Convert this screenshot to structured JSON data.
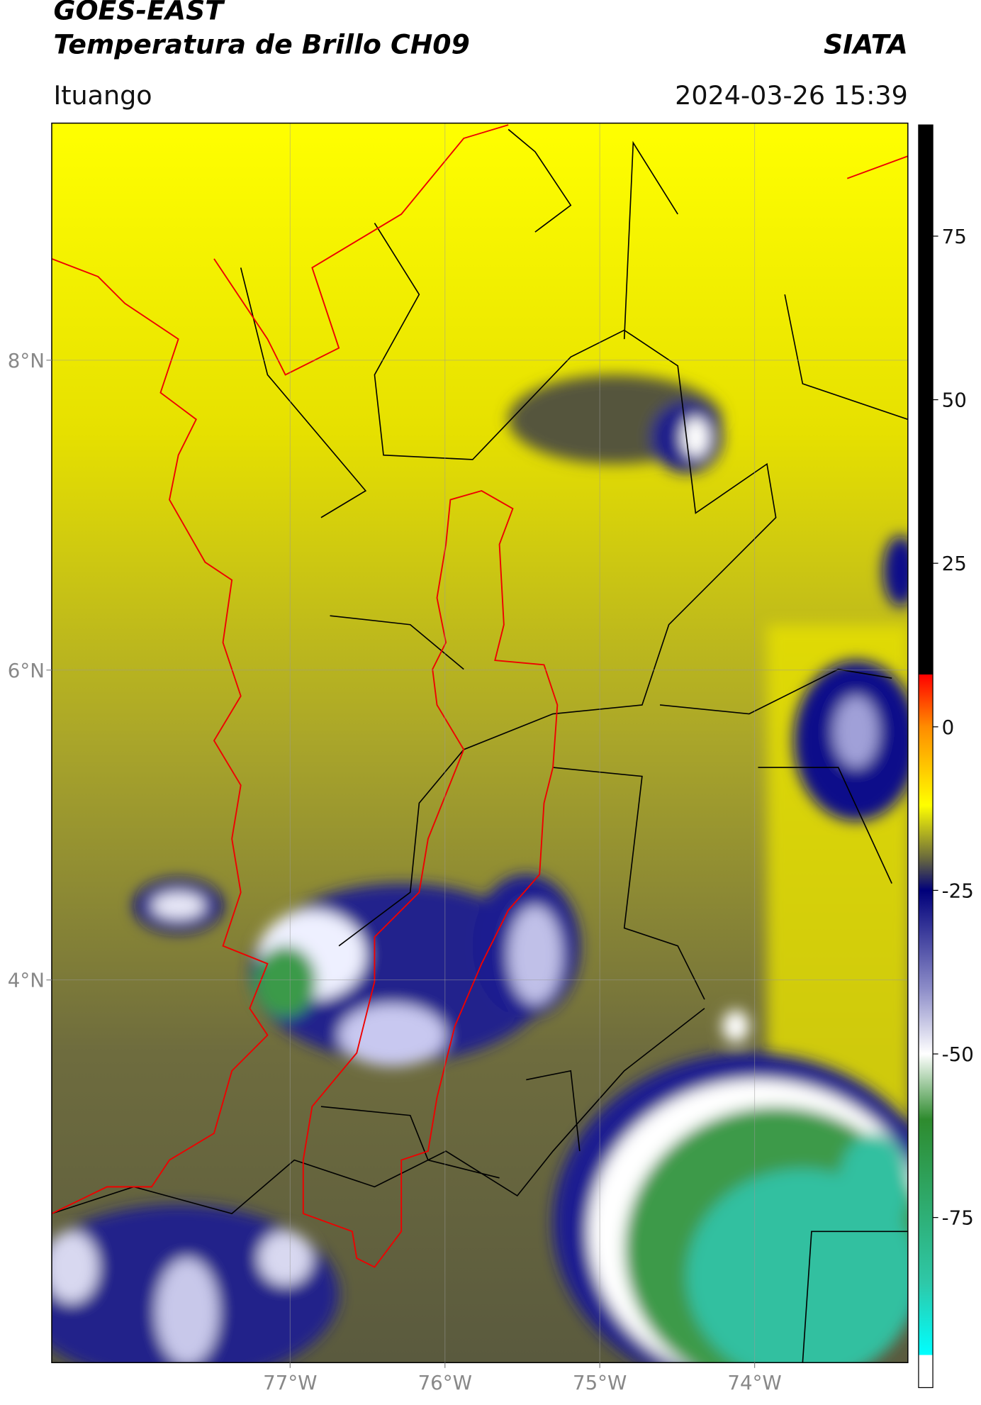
{
  "header": {
    "title_line1": "GOES-EAST",
    "title_line2": "Temperatura de Brillo CH09",
    "org": "SIATA",
    "location": "Ituango",
    "datetime": "2024-03-26 15:39"
  },
  "map": {
    "xlim": [
      -78.54,
      -73.01
    ],
    "ylim": [
      1.53,
      9.53
    ],
    "grid": true,
    "xticks": [
      {
        "value": -77,
        "label": "77°W"
      },
      {
        "value": -76,
        "label": "76°W"
      },
      {
        "value": -75,
        "label": "75°W"
      },
      {
        "value": -74,
        "label": "74°W"
      }
    ],
    "yticks": [
      {
        "value": 4,
        "label": "4°N"
      },
      {
        "value": 6,
        "label": "6°N"
      },
      {
        "value": 8,
        "label": "8°N"
      }
    ]
  },
  "colorbar": {
    "lim": [
      -101,
      92
    ],
    "ticks": [
      -75,
      -50,
      -25,
      0,
      25,
      50,
      75
    ],
    "colormap": [
      [
        92,
        "#000000"
      ],
      [
        8,
        "#000000"
      ],
      [
        8,
        "#ff0000"
      ],
      [
        0,
        "#ff8c00"
      ],
      [
        -12,
        "#ffff00"
      ],
      [
        -20,
        "#6b6b3c"
      ],
      [
        -25,
        "#00007a"
      ],
      [
        -40,
        "#8c8cc8"
      ],
      [
        -50,
        "#ffffff"
      ],
      [
        -60,
        "#2e8b2e"
      ],
      [
        -85,
        "#2ec8a8"
      ],
      [
        -96,
        "#00ffff"
      ],
      [
        -96,
        "#ffffff"
      ],
      [
        -101,
        "#ffffff"
      ]
    ]
  }
}
